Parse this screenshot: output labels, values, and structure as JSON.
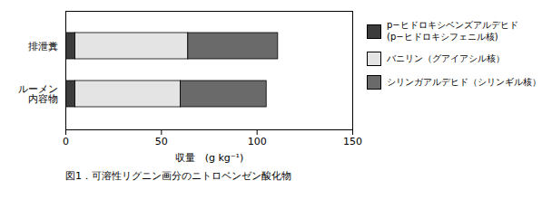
{
  "chart_data": {
    "type": "bar",
    "orientation": "horizontal",
    "stacked": true,
    "caption": "図1．可溶性リグニン画分のニトロベンゼン酸化物",
    "xlabel": "収量　(g kg⁻¹)",
    "categories": [
      "排泄糞",
      "ルーメン\n内容物"
    ],
    "series": [
      {
        "name": "p−ヒドロキシベンズアルデヒド\n(p−ヒドロキシフェニル核)",
        "color": "#3c3c3c",
        "values": [
          5,
          5
        ]
      },
      {
        "name": "バニリン（グアイアシル核）",
        "color": "#e4e4e4",
        "values": [
          59,
          55
        ]
      },
      {
        "name": "シリンガアルデヒド（シリンギル核）",
        "color": "#6a6a6a",
        "values": [
          47,
          45
        ]
      }
    ],
    "xlim": [
      0,
      150
    ],
    "xticks": [
      0,
      50,
      100,
      150
    ],
    "legend": "right",
    "grid": false
  }
}
